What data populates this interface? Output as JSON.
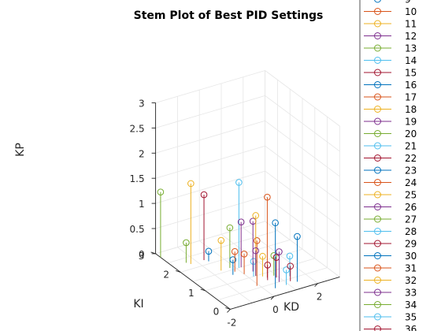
{
  "chart_data": {
    "type": "stem3",
    "title": "Stem Plot of Best PID Settings",
    "xlabel": "KD",
    "ylabel": "KI",
    "zlabel": "KP",
    "xlim": [
      -2,
      3
    ],
    "ylim": [
      0,
      3
    ],
    "zlim": [
      0,
      3
    ],
    "xticks": [
      "-2",
      "0",
      "2"
    ],
    "yticks": [
      "0",
      "1",
      "2",
      "3"
    ],
    "zticks": [
      "0",
      "0.5",
      "1",
      "1.5",
      "2",
      "2.5",
      "3"
    ],
    "grid": true,
    "legend_location": "right (outside, clipped)",
    "legend_entries": [
      "9",
      "10",
      "11",
      "12",
      "13",
      "14",
      "15",
      "16",
      "17",
      "18",
      "19",
      "20",
      "21",
      "22",
      "23",
      "24",
      "25",
      "26",
      "27",
      "28",
      "29",
      "30",
      "31",
      "32",
      "33",
      "34",
      "35",
      "36"
    ],
    "colors": [
      "#0072BD",
      "#D95319",
      "#EDB120",
      "#7E2F8E",
      "#77AC30",
      "#4DBEEE",
      "#A2142F"
    ],
    "series": [
      {
        "name": "9",
        "x": 0.4,
        "y": 0.3,
        "z": 1.3
      },
      {
        "name": "10",
        "x": -0.1,
        "y": 0.6,
        "z": 0.9
      },
      {
        "name": "11",
        "x": 0.3,
        "y": 1.0,
        "z": 1.2
      },
      {
        "name": "12",
        "x": 0.8,
        "y": 0.5,
        "z": 0.6
      },
      {
        "name": "13",
        "x": -2.0,
        "y": 2.8,
        "z": 1.3
      },
      {
        "name": "14",
        "x": 1.4,
        "y": 0.6,
        "z": 0.4
      },
      {
        "name": "15",
        "x": 1.2,
        "y": 0.4,
        "z": 0.3
      },
      {
        "name": "16",
        "x": -0.4,
        "y": 1.3,
        "z": 0.3
      },
      {
        "name": "17",
        "x": -0.2,
        "y": 1.4,
        "z": 0.4
      },
      {
        "name": "18",
        "x": 0.5,
        "y": 0.9,
        "z": 0.4
      },
      {
        "name": "19",
        "x": 0.2,
        "y": 1.5,
        "z": 0.9
      },
      {
        "name": "20",
        "x": -1.4,
        "y": 2.3,
        "z": 0.4
      },
      {
        "name": "21",
        "x": 0.1,
        "y": 1.5,
        "z": 1.7
      },
      {
        "name": "22",
        "x": -0.7,
        "y": 2.2,
        "z": 1.3
      },
      {
        "name": "23",
        "x": 1.4,
        "y": 0.3,
        "z": 0.9
      },
      {
        "name": "24",
        "x": 0.6,
        "y": 0.8,
        "z": 1.6
      },
      {
        "name": "25",
        "x": -0.6,
        "y": 1.6,
        "z": 0.6
      },
      {
        "name": "26",
        "x": 0.3,
        "y": 1.0,
        "z": 0.5
      },
      {
        "name": "27",
        "x": 0.9,
        "y": 0.8,
        "z": 0.4
      },
      {
        "name": "28",
        "x": 0.2,
        "y": 1.0,
        "z": 0.3
      },
      {
        "name": "29",
        "x": 0.5,
        "y": 0.7,
        "z": 0.3
      },
      {
        "name": "30",
        "x": -0.6,
        "y": 2.1,
        "z": 0.2
      },
      {
        "name": "31",
        "x": 0.0,
        "y": 1.2,
        "z": 0.4
      },
      {
        "name": "32",
        "x": -1.3,
        "y": 2.2,
        "z": 1.6
      },
      {
        "name": "33",
        "x": 0.4,
        "y": 1.2,
        "z": 1.0
      },
      {
        "name": "34",
        "x": -0.2,
        "y": 1.6,
        "z": 0.8
      },
      {
        "name": "35",
        "x": 0.9,
        "y": 0.3,
        "z": 0.3
      },
      {
        "name": "36",
        "x": 0.9,
        "y": 0.7,
        "z": 0.4
      }
    ]
  }
}
